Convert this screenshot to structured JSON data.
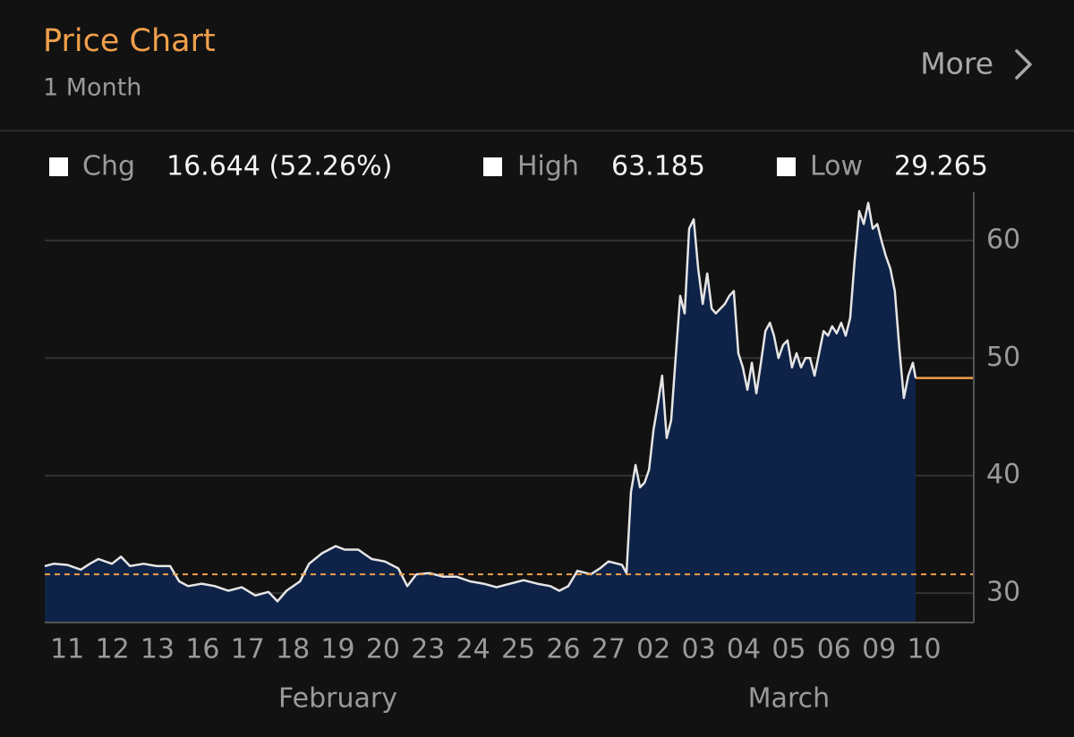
{
  "header": {
    "title": "Price Chart",
    "subtitle": "1 Month",
    "more": "More"
  },
  "stats": [
    {
      "label": "Chg",
      "value": "16.644 (52.26%)"
    },
    {
      "label": "High",
      "value": "63.185"
    },
    {
      "label": "Low",
      "value": "29.265"
    }
  ],
  "chart_data": {
    "type": "area",
    "x": [
      -0.5,
      -0.3,
      0,
      0.3,
      0.5,
      0.69,
      0.99,
      1.19,
      1.39,
      1.69,
      1.98,
      2.28,
      2.48,
      2.68,
      2.98,
      3.27,
      3.57,
      3.87,
      4.17,
      4.46,
      4.66,
      4.86,
      5.16,
      5.36,
      5.65,
      5.95,
      6.15,
      6.45,
      6.75,
      7.04,
      7.34,
      7.54,
      7.74,
      8.04,
      8.33,
      8.63,
      8.93,
      9.23,
      9.52,
      9.82,
      10.12,
      10.42,
      10.71,
      10.91,
      11.11,
      11.31,
      11.61,
      11.81,
      12.0,
      12.3,
      12.4,
      12.5,
      12.6,
      12.7,
      12.8,
      12.9,
      13.0,
      13.1,
      13.19,
      13.29,
      13.39,
      13.49,
      13.59,
      13.69,
      13.79,
      13.89,
      13.99,
      14.09,
      14.19,
      14.29,
      14.38,
      14.58,
      14.68,
      14.78,
      14.88,
      14.98,
      15.08,
      15.18,
      15.28,
      15.38,
      15.48,
      15.58,
      15.67,
      15.77,
      15.87,
      15.97,
      16.07,
      16.17,
      16.27,
      16.37,
      16.47,
      16.57,
      16.67,
      16.77,
      16.87,
      16.96,
      17.06,
      17.16,
      17.26,
      17.36,
      17.46,
      17.56,
      17.66,
      17.76,
      17.86,
      17.96,
      18.06,
      18.15,
      18.25,
      18.35,
      18.45,
      18.55,
      18.65,
      18.75,
      18.81
    ],
    "series": [
      {
        "color": "#e6e6e6",
        "fill": "#0e2347",
        "values": [
          32.3,
          32.5,
          32.4,
          32.0,
          32.5,
          32.9,
          32.5,
          33.1,
          32.3,
          32.5,
          32.3,
          32.3,
          31.0,
          30.6,
          30.8,
          30.6,
          30.2,
          30.5,
          29.8,
          30.1,
          29.3,
          30.2,
          31.0,
          32.5,
          33.4,
          34.0,
          33.7,
          33.7,
          32.9,
          32.7,
          32.1,
          30.6,
          31.6,
          31.7,
          31.4,
          31.4,
          31.0,
          30.8,
          30.5,
          30.8,
          31.1,
          30.8,
          30.6,
          30.2,
          30.6,
          31.9,
          31.6,
          32.1,
          32.7,
          32.4,
          31.7,
          38.6,
          40.9,
          39.0,
          39.4,
          40.5,
          43.9,
          46.2,
          48.5,
          43.2,
          44.7,
          50.0,
          55.3,
          53.8,
          61.0,
          61.8,
          57.6,
          54.6,
          57.2,
          54.2,
          53.8,
          54.6,
          55.3,
          55.7,
          50.4,
          49.2,
          47.3,
          49.6,
          47.0,
          49.6,
          52.3,
          53.0,
          51.9,
          50.0,
          51.1,
          51.5,
          49.2,
          50.4,
          49.2,
          50.0,
          50.0,
          48.5,
          50.4,
          52.3,
          51.9,
          52.7,
          52.1,
          53.0,
          51.9,
          53.4,
          58.4,
          62.5,
          61.4,
          63.2,
          61.0,
          61.4,
          59.9,
          58.7,
          57.6,
          55.7,
          50.8,
          46.6,
          48.5,
          49.6,
          48.3
        ]
      }
    ],
    "xlim": [
      -0.5,
      20.1
    ],
    "xticks": [
      {
        "value": 0,
        "label": "11"
      },
      {
        "value": 1,
        "label": "12"
      },
      {
        "value": 2,
        "label": "13"
      },
      {
        "value": 3,
        "label": "16"
      },
      {
        "value": 4,
        "label": "17"
      },
      {
        "value": 5,
        "label": "18"
      },
      {
        "value": 6,
        "label": "19"
      },
      {
        "value": 7,
        "label": "20"
      },
      {
        "value": 8,
        "label": "23"
      },
      {
        "value": 9,
        "label": "24"
      },
      {
        "value": 10,
        "label": "25"
      },
      {
        "value": 11,
        "label": "26"
      },
      {
        "value": 12,
        "label": "27"
      },
      {
        "value": 13,
        "label": "02"
      },
      {
        "value": 14,
        "label": "03"
      },
      {
        "value": 15,
        "label": "04"
      },
      {
        "value": 16,
        "label": "05"
      },
      {
        "value": 17,
        "label": "06"
      },
      {
        "value": 18,
        "label": "09"
      },
      {
        "value": 19,
        "label": "10"
      }
    ],
    "x_groups": [
      {
        "label": "February",
        "from": 0,
        "to": 12
      },
      {
        "label": "March",
        "from": 13,
        "to": 19
      }
    ],
    "ylim": [
      27.5,
      64.1
    ],
    "yticks": [
      30,
      40,
      50,
      60
    ],
    "grid": true,
    "y_axis_side": "right",
    "hlines": [
      {
        "value": 31.6,
        "style": "dashed",
        "color": "#f0a04b"
      }
    ],
    "last_line_color": "#f0a04b"
  }
}
